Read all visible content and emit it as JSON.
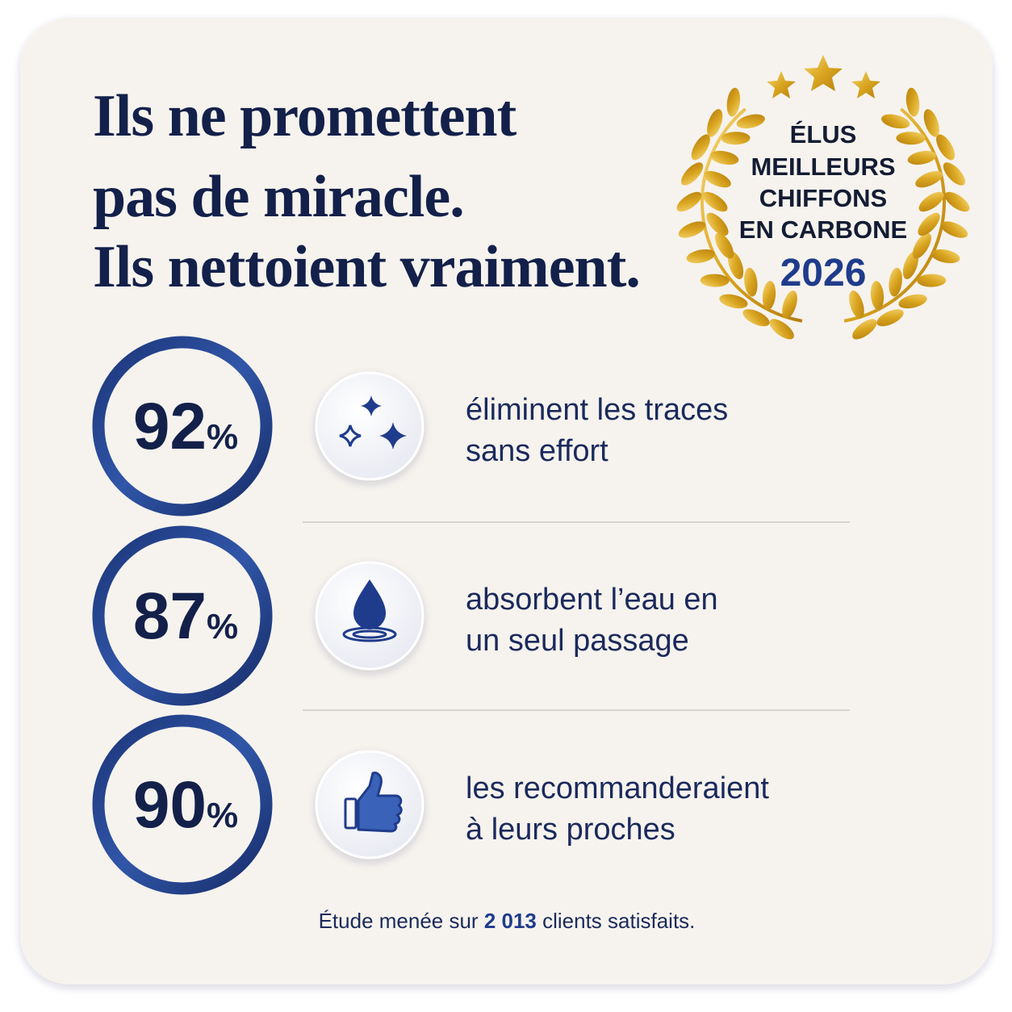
{
  "title": {
    "lines": [
      "Ils ne promettent",
      "pas de miracle.",
      "Ils nettoient vraiment."
    ]
  },
  "badge": {
    "lines": [
      "ÉLUS",
      "MEILLEURS",
      "CHIFFONS",
      "EN CARBONE"
    ],
    "year": "2026"
  },
  "stats": [
    {
      "value": "92",
      "unit": "%",
      "text": [
        "éliminent les traces",
        "sans effort"
      ]
    },
    {
      "value": "87",
      "unit": "%",
      "text": [
        "absorbent l’eau en",
        "un seul passage"
      ]
    },
    {
      "value": "90",
      "unit": "%",
      "text": [
        "les recommanderaient",
        "à leurs proches"
      ]
    }
  ],
  "footer": {
    "before": "Étude menée sur ",
    "highlight": "2 013",
    "after": " clients satisfaits."
  }
}
